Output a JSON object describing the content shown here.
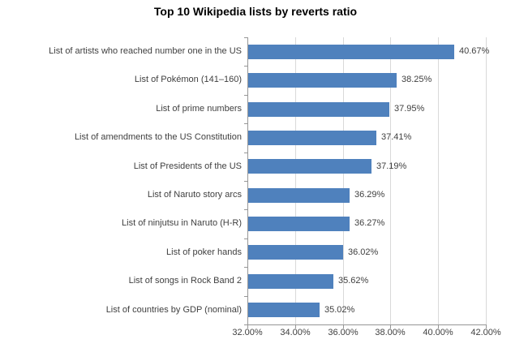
{
  "title": "Top 10 Wikipedia lists by reverts ratio",
  "colors": {
    "bar": "#4f81bd",
    "gridline": "#d9d9d9",
    "axis": "#969696",
    "label": "#3f3f3f",
    "title": "#000000",
    "background": "#ffffff"
  },
  "chart_data": {
    "type": "bar",
    "orientation": "horizontal",
    "title": "Top 10 Wikipedia lists by reverts ratio",
    "xlabel": "",
    "ylabel": "",
    "categories": [
      "List of artists who reached number one in the US",
      "List of Pokémon (141–160)",
      "List of prime numbers",
      "List of amendments to the US Constitution",
      "List of Presidents of the US",
      "List of Naruto story arcs",
      "List of ninjutsu in Naruto (H-R)",
      "List of poker hands",
      "List of songs in Rock Band 2",
      "List of countries by GDP (nominal)"
    ],
    "values": [
      40.67,
      38.25,
      37.95,
      37.41,
      37.19,
      36.29,
      36.27,
      36.02,
      35.62,
      35.02
    ],
    "value_labels": [
      "40.67%",
      "38.25%",
      "37.95%",
      "37.41%",
      "37.19%",
      "36.29%",
      "36.27%",
      "36.02%",
      "35.62%",
      "35.02%"
    ],
    "xlim": [
      32,
      42
    ],
    "xticks": [
      32,
      34,
      36,
      38,
      40,
      42
    ],
    "xtick_labels": [
      "32.00%",
      "34.00%",
      "36.00%",
      "38.00%",
      "40.00%",
      "42.00%"
    ],
    "grid": "vertical",
    "legend": false
  }
}
